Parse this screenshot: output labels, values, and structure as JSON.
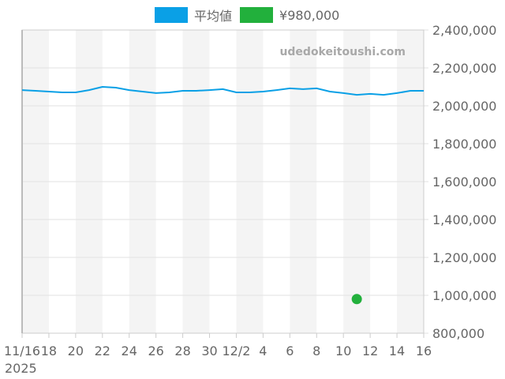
{
  "legend": {
    "items": [
      {
        "label": "平均値",
        "color": "#0aa0e6"
      },
      {
        "label": "¥980,000",
        "color": "#22b03c"
      }
    ]
  },
  "watermark": "udedokeitoushi.com",
  "chart_data": {
    "type": "line",
    "title": "",
    "xlabel": "",
    "ylabel": "",
    "x_tick_labels": [
      "11/16",
      "18",
      "20",
      "22",
      "24",
      "26",
      "28",
      "30",
      "12/2",
      "4",
      "6",
      "8",
      "10",
      "12",
      "14",
      "16"
    ],
    "x_year_label": "2025",
    "y_tick_labels": [
      "2,400,000",
      "2,200,000",
      "2,000,000",
      "1,800,000",
      "1,600,000",
      "1,400,000",
      "1,200,000",
      "1,000,000",
      "800,000"
    ],
    "ylim": [
      800000,
      2400000
    ],
    "y_axis_position": "right",
    "grid": true,
    "legend_position": "top",
    "x": [
      "2025-11-16",
      "2025-11-17",
      "2025-11-18",
      "2025-11-19",
      "2025-11-20",
      "2025-11-21",
      "2025-11-22",
      "2025-11-23",
      "2025-11-24",
      "2025-11-25",
      "2025-11-26",
      "2025-11-27",
      "2025-11-28",
      "2025-11-29",
      "2025-11-30",
      "2025-12-01",
      "2025-12-02",
      "2025-12-03",
      "2025-12-04",
      "2025-12-05",
      "2025-12-06",
      "2025-12-07",
      "2025-12-08",
      "2025-12-09",
      "2025-12-10",
      "2025-12-11",
      "2025-12-12",
      "2025-12-13",
      "2025-12-14",
      "2025-12-15",
      "2025-12-16"
    ],
    "series": [
      {
        "name": "平均値",
        "type": "line",
        "color": "#0aa0e6",
        "values": [
          2083000,
          2079000,
          2075000,
          2071000,
          2071000,
          2083000,
          2100000,
          2096000,
          2083000,
          2075000,
          2067000,
          2071000,
          2079000,
          2079000,
          2083000,
          2088000,
          2071000,
          2071000,
          2075000,
          2083000,
          2092000,
          2088000,
          2092000,
          2075000,
          2067000,
          2058000,
          2063000,
          2058000,
          2067000,
          2079000,
          2079000
        ]
      },
      {
        "name": "¥980,000",
        "type": "scatter",
        "color": "#22b03c",
        "points": [
          {
            "x": "2025-12-11",
            "y": 980000
          }
        ]
      }
    ]
  }
}
